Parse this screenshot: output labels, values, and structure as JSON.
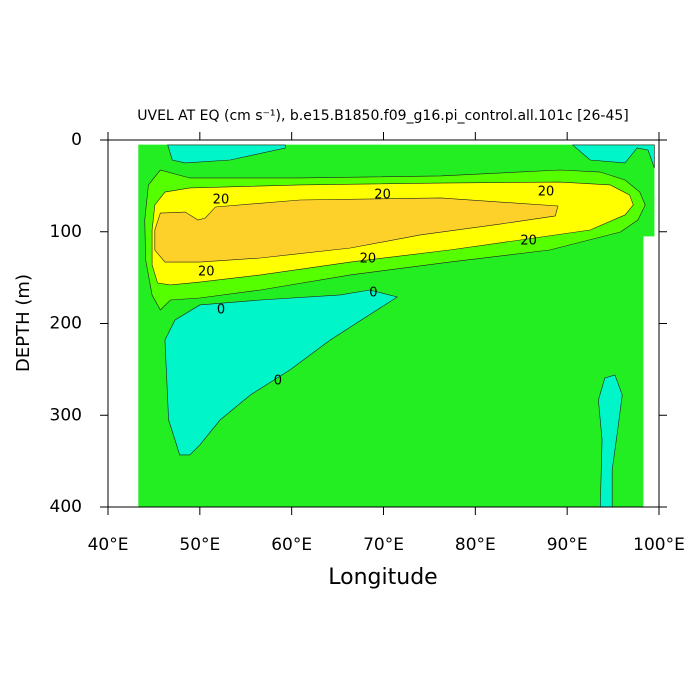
{
  "chart_data": {
    "type": "contour",
    "title": "UVEL AT EQ (cm s⁻¹), b.e15.B1850.f09_g16.pi_control.all.101c [26-45]",
    "xlabel": "Longitude",
    "ylabel": "DEPTH (m)",
    "xlim": [
      40,
      100
    ],
    "ylim": [
      0,
      400
    ],
    "y_inverted": true,
    "xticks": [
      {
        "value": 40,
        "label": "40°E"
      },
      {
        "value": 50,
        "label": "50°E"
      },
      {
        "value": 60,
        "label": "60°E"
      },
      {
        "value": 70,
        "label": "70°E"
      },
      {
        "value": 80,
        "label": "80°E"
      },
      {
        "value": 90,
        "label": "90°E"
      },
      {
        "value": 100,
        "label": "100°E"
      }
    ],
    "yticks": [
      0,
      100,
      200,
      300,
      400
    ],
    "regions": [
      {
        "color": "#22ee22",
        "x": [
          43.3,
          99.5,
          99.5,
          98.3,
          98.3,
          43.3
        ],
        "y": [
          5,
          5,
          105,
          105,
          400,
          400
        ]
      },
      {
        "color": "#00f5c8",
        "x": [
          46.5,
          47.0,
          48.4,
          53.3,
          59.3,
          59.3
        ],
        "y": [
          5.4,
          21.8,
          25,
          21.8,
          8.7,
          5.4
        ]
      },
      {
        "color": "#00f5c8",
        "x": [
          90.6,
          92.5,
          96.3,
          97.6,
          98.8,
          99.5,
          99.5
        ],
        "y": [
          5.4,
          21.8,
          25,
          8.7,
          10.9,
          30.5,
          5.4
        ]
      },
      {
        "color": "#00f5c8",
        "x": [
          68.5,
          71.5,
          64.2,
          59.8,
          55.5,
          52.2,
          50.0,
          48.9,
          47.8,
          47.3,
          46.6,
          46.2,
          47.3,
          50.0,
          56.6,
          65.3
        ],
        "y": [
          163.5,
          171.1,
          218,
          250.7,
          277.9,
          305.2,
          332.4,
          343.3,
          343.3,
          327,
          305.2,
          218,
          196.2,
          179.8,
          174.4,
          168.9
        ]
      },
      {
        "color": "#00f5c8",
        "x": [
          93.6,
          93.8,
          93.4,
          94.1,
          95.2,
          96.0,
          95.5,
          94.9,
          94.9
        ],
        "y": [
          400,
          327,
          283.4,
          259.4,
          256.1,
          277.9,
          316.1,
          359.7,
          400
        ]
      },
      {
        "color": "#55ff00",
        "x": [
          44.4,
          45.7,
          48.9,
          60.9,
          76.2,
          89.2,
          93.6,
          96.3,
          97.9,
          98.5,
          97.7,
          95.8,
          88.1,
          77.2,
          66.4,
          56.6,
          50.0,
          46.8,
          45.7,
          44.8,
          44.1,
          44.0
        ],
        "y": [
          49.0,
          32.7,
          41.4,
          41.4,
          39.2,
          32.7,
          34.9,
          43.6,
          56.7,
          70.8,
          87.2,
          100.3,
          119.9,
          133.0,
          147.1,
          163.5,
          172.2,
          174.4,
          185.3,
          168.9,
          130.8,
          87.2
        ]
      },
      {
        "color": "#ffff00",
        "x": [
          44.8,
          45.1,
          46.2,
          48.9,
          60.9,
          76.2,
          89.2,
          94.7,
          96.8,
          97.2,
          96.3,
          92.5,
          84.9,
          77.2,
          66.4,
          56.6,
          50.0,
          46.8,
          45.4,
          44.8
        ],
        "y": [
          98.1,
          70.8,
          56.7,
          52.3,
          49.0,
          46.9,
          45.8,
          49.0,
          59.9,
          70.8,
          81.7,
          98.1,
          109.0,
          119.9,
          133.0,
          147.1,
          154.8,
          158.0,
          155.9,
          136.2
        ]
      },
      {
        "color": "#fdd02a",
        "x": [
          45.7,
          48.4,
          49.8,
          50.6,
          51.7,
          60.9,
          76.2,
          89.0,
          88.7,
          82.7,
          74.0,
          66.4,
          56.6,
          50.0,
          46.2,
          45.1,
          45.1
        ],
        "y": [
          79.6,
          78.5,
          87.2,
          85.0,
          73.0,
          65.4,
          63.2,
          71.9,
          82.8,
          91.6,
          103.5,
          117.7,
          128.6,
          133.0,
          133.0,
          119.9,
          98.1
        ]
      }
    ],
    "contour_labels": [
      {
        "value": 20,
        "x": 52.3,
        "y": 65.4
      },
      {
        "value": 20,
        "x": 69.9,
        "y": 59.9
      },
      {
        "value": 20,
        "x": 87.7,
        "y": 56.7
      },
      {
        "value": 20,
        "x": 50.7,
        "y": 143.9
      },
      {
        "value": 20,
        "x": 68.3,
        "y": 129.7
      },
      {
        "value": 20,
        "x": 85.8,
        "y": 110.1
      },
      {
        "value": 0,
        "x": 68.9,
        "y": 166.8
      },
      {
        "value": 0,
        "x": 52.3,
        "y": 185.3
      },
      {
        "value": 0,
        "x": 58.5,
        "y": 262.7
      }
    ]
  }
}
